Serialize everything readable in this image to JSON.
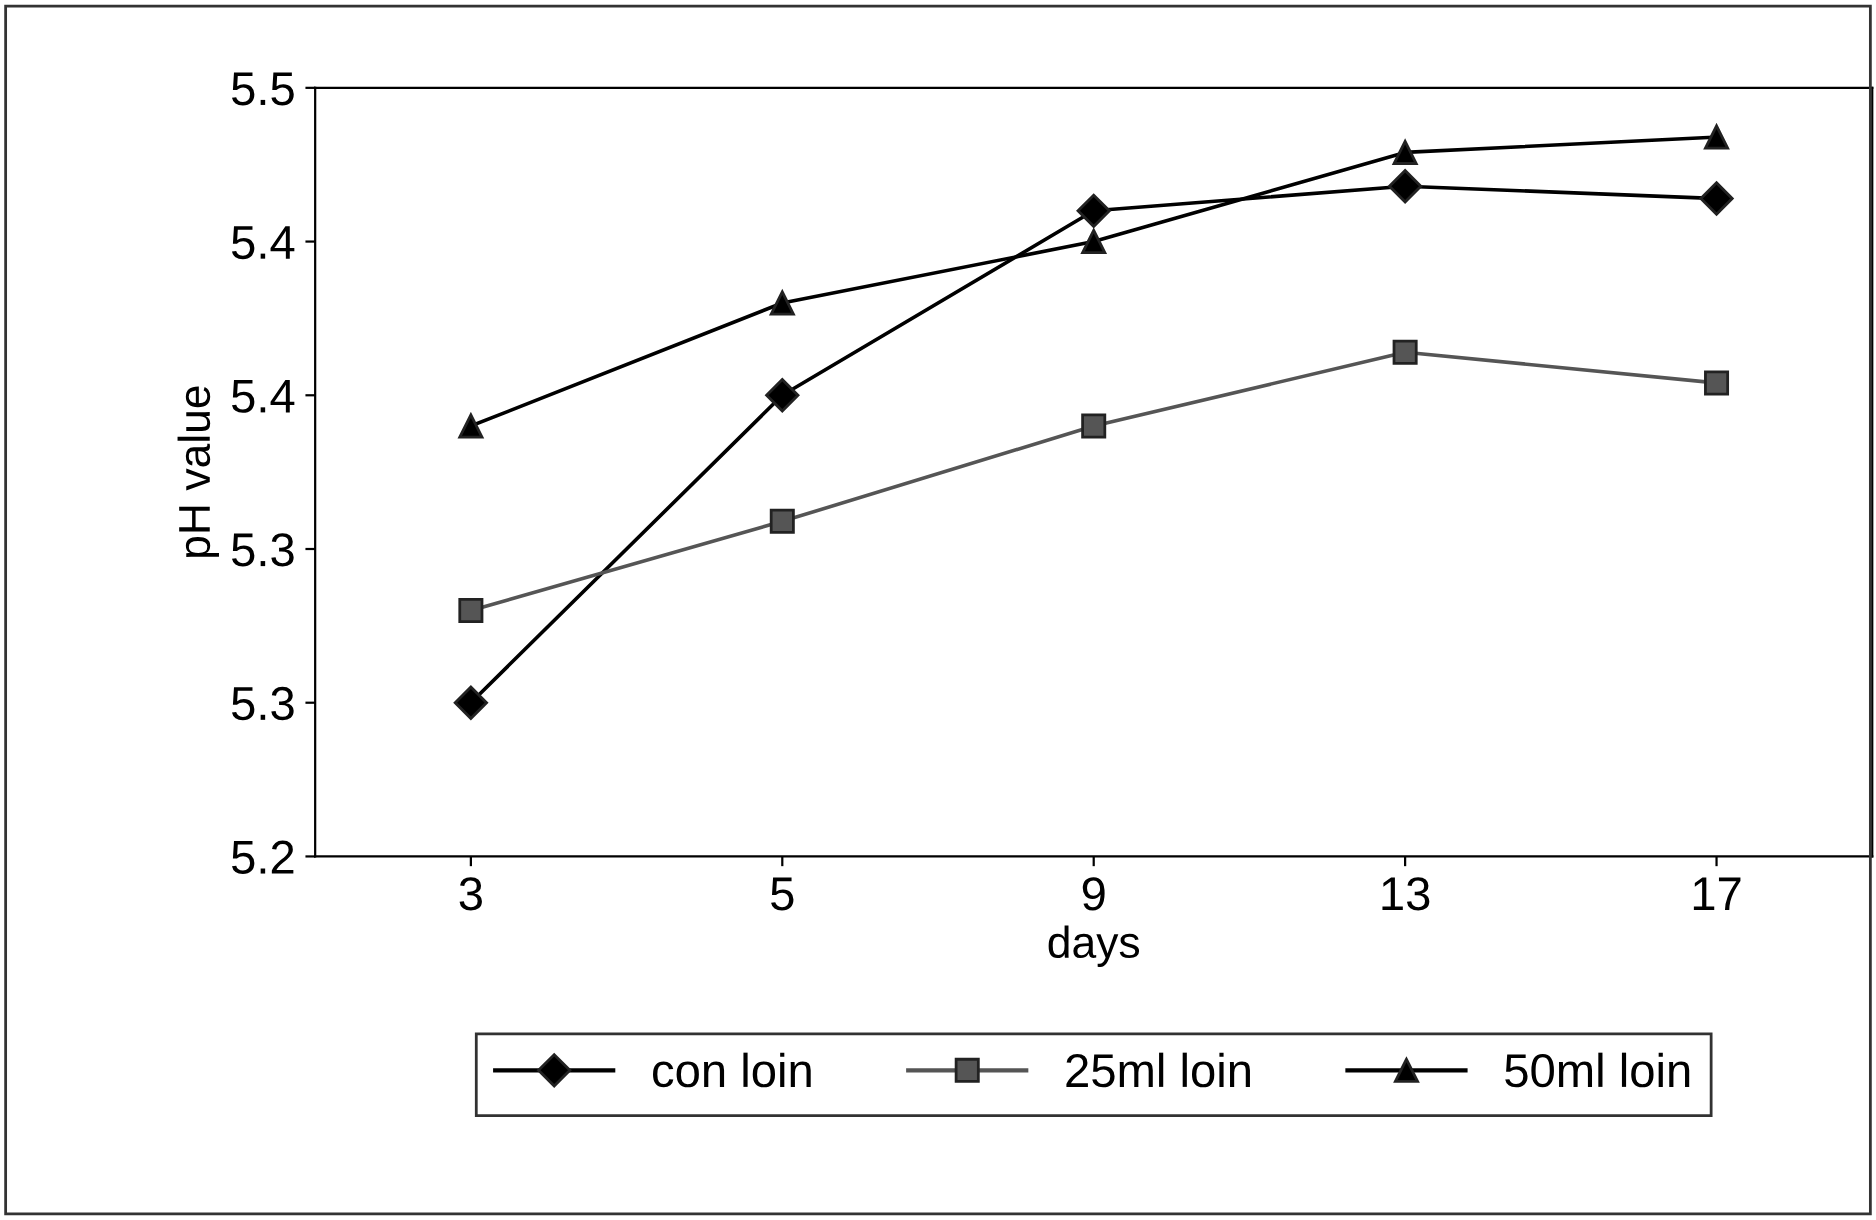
{
  "chart_data": {
    "type": "line",
    "xlabel": "days",
    "ylabel": "pH value",
    "categories": [
      "3",
      "5",
      "9",
      "13",
      "17"
    ],
    "series": [
      {
        "name": "con loin",
        "color": "#000000",
        "marker": "diamond",
        "values": [
          5.25,
          5.35,
          5.41,
          5.418,
          5.414
        ]
      },
      {
        "name": "25ml loin",
        "color": "#555555",
        "marker": "square",
        "values": [
          5.28,
          5.309,
          5.34,
          5.364,
          5.354
        ]
      },
      {
        "name": "50ml loin",
        "color": "#000000",
        "marker": "triangle",
        "values": [
          5.34,
          5.38,
          5.4,
          5.429,
          5.434
        ]
      }
    ],
    "ylim": [
      5.2,
      5.45
    ],
    "yticks": [
      {
        "value": 5.2,
        "label": "5.2"
      },
      {
        "value": 5.25,
        "label": "5.3"
      },
      {
        "value": 5.3,
        "label": "5.3"
      },
      {
        "value": 5.35,
        "label": "5.4"
      },
      {
        "value": 5.4,
        "label": "5.4"
      },
      {
        "value": 5.45,
        "label": "5.5"
      }
    ],
    "grid": false,
    "legend": "bottom",
    "line_style": "solid"
  }
}
